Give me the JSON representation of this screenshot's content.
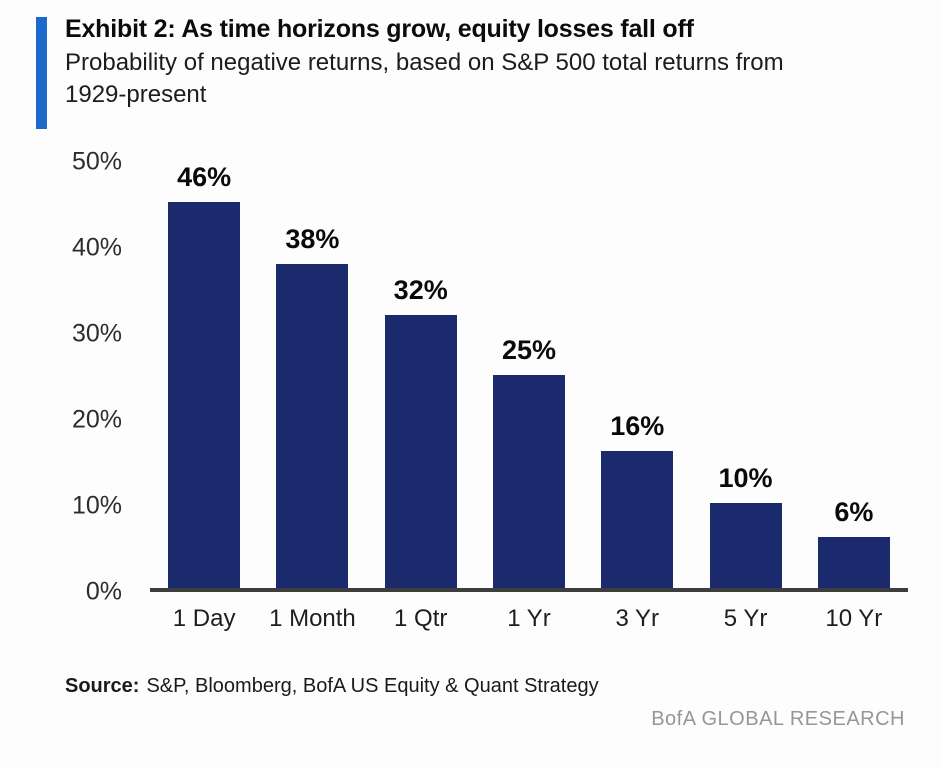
{
  "accent_color": "#1b69c8",
  "header": {
    "title": "Exhibit 2: As time horizons grow, equity losses fall off",
    "subtitle": "Probability of negative returns, based on S&P 500 total returns from\n1929-present"
  },
  "chart_data": {
    "type": "bar",
    "title": "Probability of negative returns, based on S&P 500 total returns from 1929-present",
    "categories": [
      "1 Day",
      "1 Month",
      "1 Qtr",
      "1 Yr",
      "3 Yr",
      "5 Yr",
      "10 Yr"
    ],
    "values": [
      46,
      38,
      32,
      25,
      16,
      10,
      6
    ],
    "value_labels": [
      "46%",
      "38%",
      "32%",
      "25%",
      "16%",
      "10%",
      "6%"
    ],
    "xlabel": "",
    "ylabel": "",
    "ylim": [
      0,
      50
    ],
    "yticks": [
      "50%",
      "40%",
      "30%",
      "20%",
      "10%",
      "0%"
    ],
    "grid": false,
    "legend": false,
    "bar_color": "#1a2a6c",
    "axis_line_color": "#3d3d3d"
  },
  "footer": {
    "source_label": "Source:",
    "source_text": "S&P, Bloomberg, BofA US Equity & Quant Strategy",
    "branding": "BofA GLOBAL RESEARCH"
  }
}
